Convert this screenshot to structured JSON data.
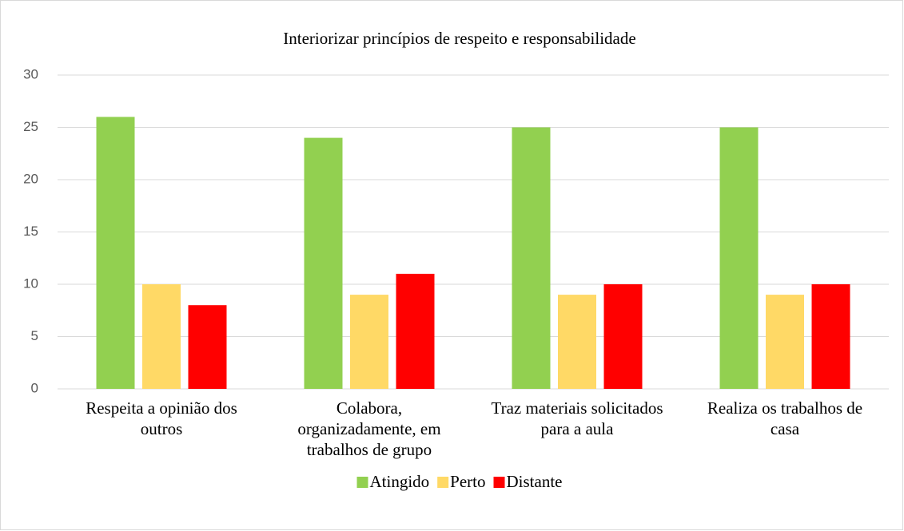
{
  "chart_data": {
    "type": "bar",
    "title": "Interiorizar princípios de respeito e responsabilidade",
    "categories": [
      "Respeita a opinião dos outros",
      "Colabora, organizadamente, em trabalhos de grupo",
      "Traz materiais solicitados para a aula",
      "Realiza os trabalhos de casa"
    ],
    "series": [
      {
        "name": "Atingido",
        "color": "#92d050",
        "values": [
          26,
          24,
          25,
          25
        ]
      },
      {
        "name": "Perto",
        "color": "#ffd966",
        "values": [
          10,
          9,
          9,
          9
        ]
      },
      {
        "name": "Distante",
        "color": "#ff0000",
        "values": [
          8,
          11,
          10,
          10
        ]
      }
    ],
    "ylim": [
      0,
      30
    ],
    "yticks": [
      0,
      5,
      10,
      15,
      20,
      25,
      30
    ],
    "grid": true,
    "legend": "bottom"
  }
}
